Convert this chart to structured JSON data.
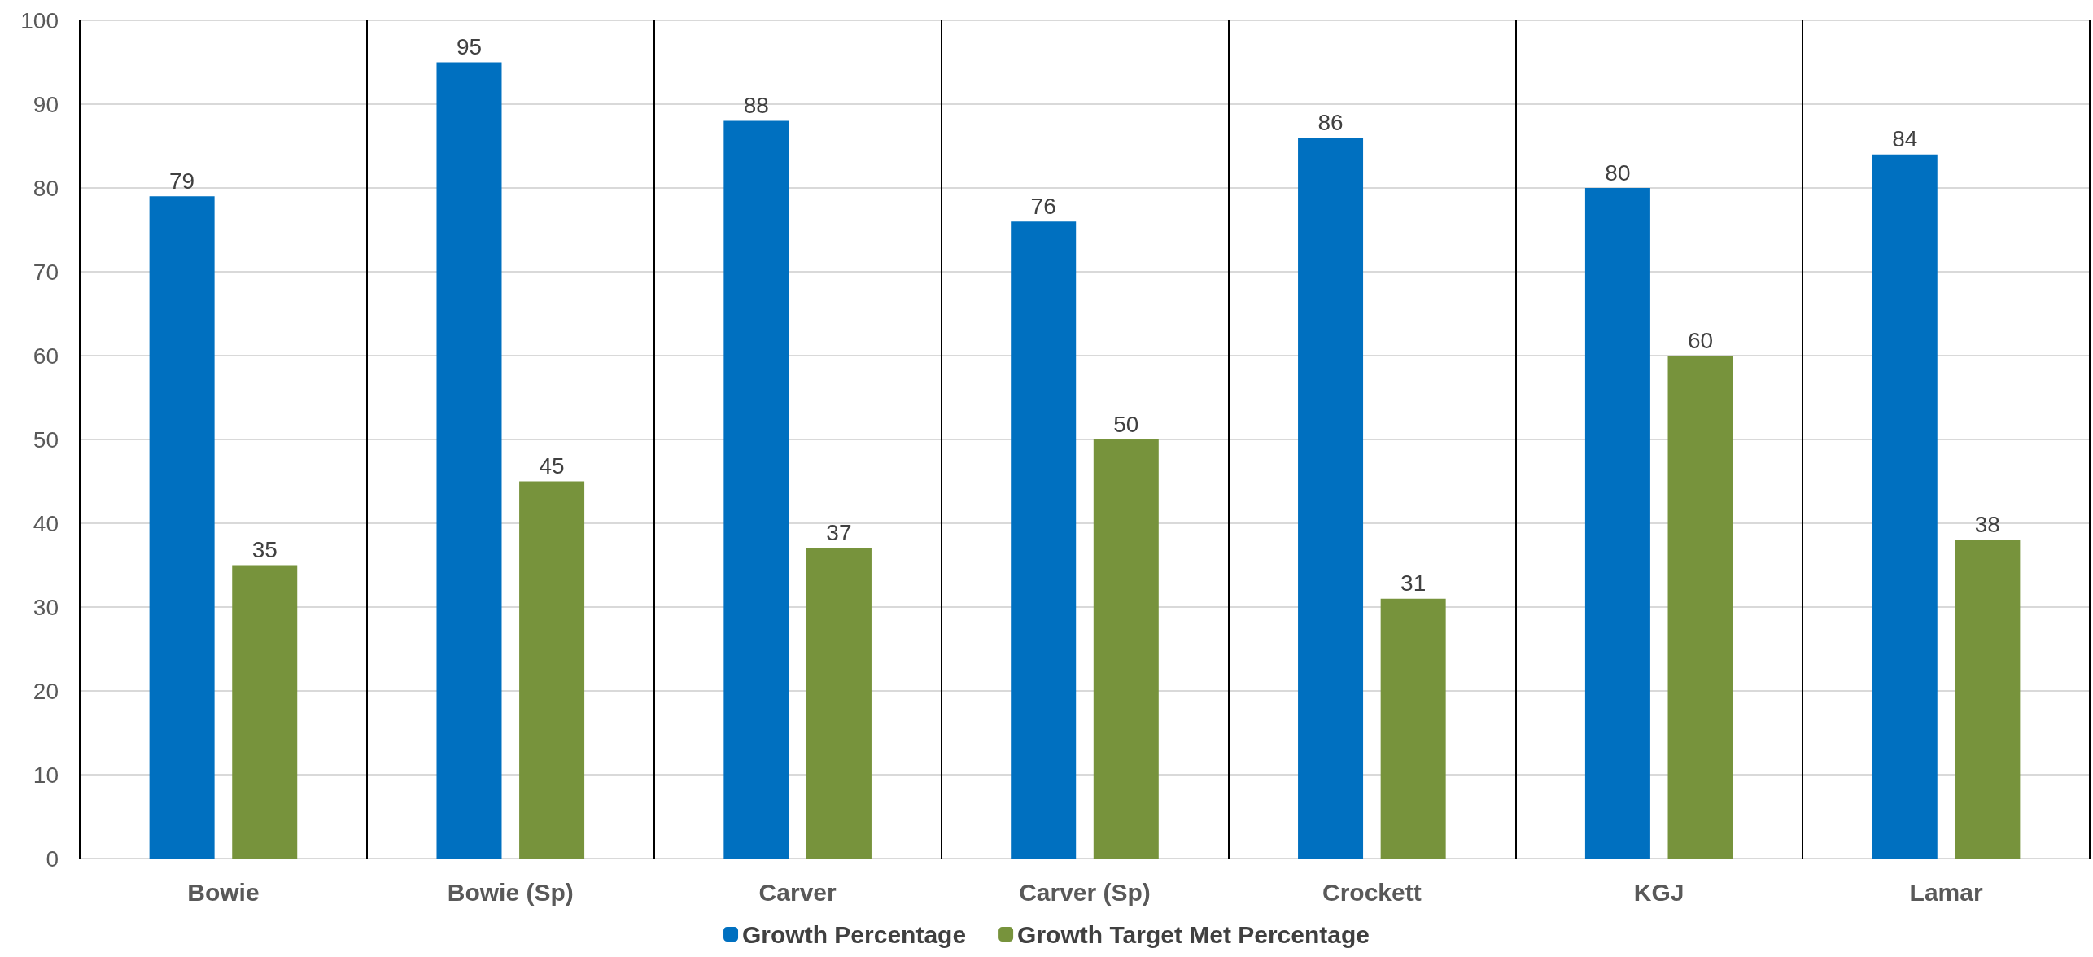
{
  "chart_data": {
    "type": "bar",
    "categories": [
      "Bowie",
      "Bowie (Sp)",
      "Carver",
      "Carver (Sp)",
      "Crockett",
      "KGJ",
      "Lamar"
    ],
    "series": [
      {
        "name": "Growth Percentage",
        "color": "#0070c0",
        "values": [
          79,
          95,
          88,
          76,
          86,
          80,
          84
        ]
      },
      {
        "name": "Growth Target Met Percentage",
        "color": "#77933c",
        "values": [
          35,
          45,
          37,
          50,
          31,
          60,
          38
        ]
      }
    ],
    "ylim": [
      0,
      100
    ],
    "yticks": [
      0,
      10,
      20,
      30,
      40,
      50,
      60,
      70,
      80,
      90,
      100
    ],
    "grid": true,
    "legend": "bottom",
    "data_labels": true
  }
}
